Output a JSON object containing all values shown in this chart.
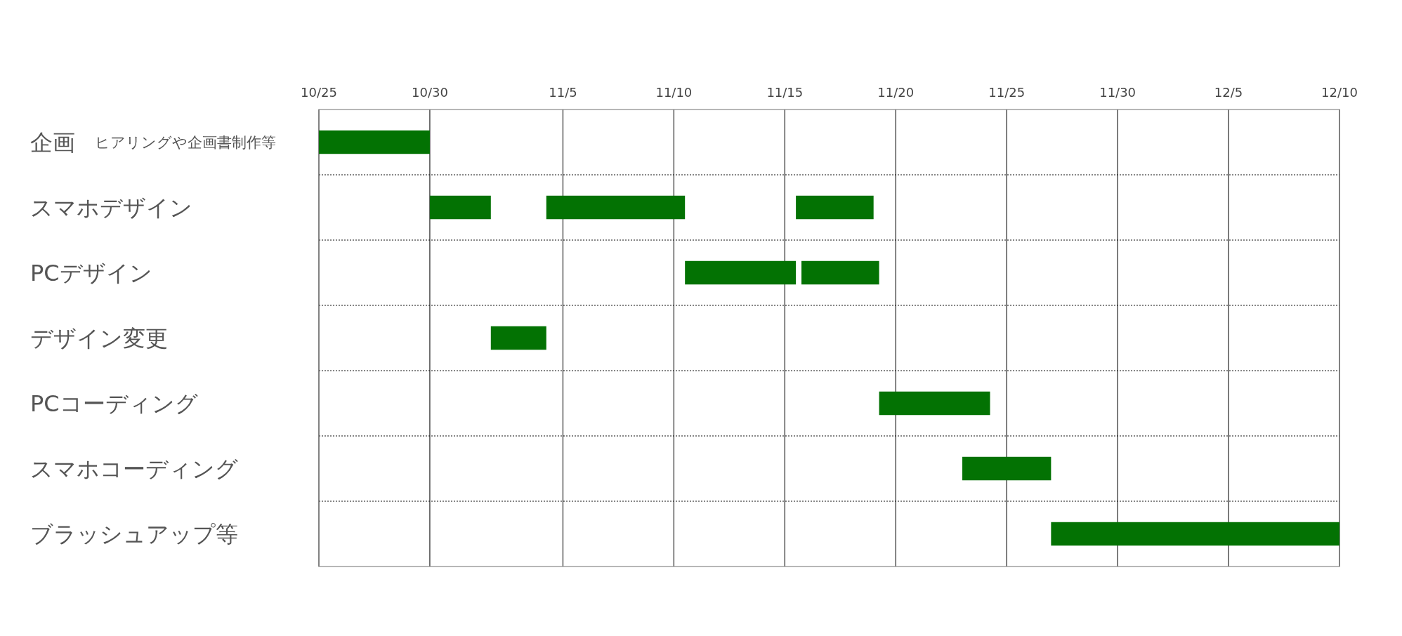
{
  "chart_data": {
    "type": "bar",
    "orientation": "horizontal",
    "categories": [
      "企画",
      "スマホデザイン",
      "PCデザイン",
      "デザイン変更",
      "PCコーディング",
      "スマホコーディング",
      "ブラッシュアップ等"
    ],
    "series": [
      {
        "color": "#037203",
        "base": [
          11620,
          11625,
          11636.5,
          11627.75,
          11645.25,
          11649,
          11653
        ],
        "values": [
          5,
          2.75,
          5,
          2.5,
          5,
          4,
          13
        ]
      },
      {
        "color": "#037203",
        "base": [
          null,
          11630.25,
          11641.75,
          null,
          null,
          null,
          null
        ],
        "values": [
          null,
          6.25,
          3.5,
          null,
          null,
          null,
          null
        ]
      },
      {
        "color": "#037203",
        "base": [
          null,
          11641.5,
          null,
          null,
          null,
          null,
          null
        ],
        "values": [
          null,
          3.5,
          null,
          null,
          null,
          null,
          null
        ]
      }
    ],
    "xlim": [
      "--10-25",
      "--12-10"
    ],
    "xticks": [
      {
        "value": "--10-25",
        "label": "10/25"
      },
      {
        "value": "--10-30",
        "label": "10/30"
      },
      {
        "value": "--11-05",
        "label": "11/5"
      },
      {
        "value": "--11-10",
        "label": "11/10"
      },
      {
        "value": "--11-15",
        "label": "11/15"
      },
      {
        "value": "--11-20",
        "label": "11/20"
      },
      {
        "value": "--11-25",
        "label": "11/25"
      },
      {
        "value": "--11-30",
        "label": "11/30"
      },
      {
        "value": "--12-05",
        "label": "12/5"
      },
      {
        "value": "--12-10",
        "label": "12/10"
      }
    ],
    "grid": true,
    "annotations": [
      "ヒアリングや企画書制作等"
    ]
  }
}
